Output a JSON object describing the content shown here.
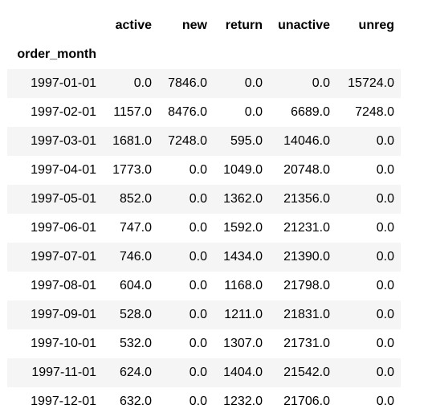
{
  "table": {
    "columns": [
      "active",
      "new",
      "return",
      "unactive",
      "unreg"
    ],
    "index_name": "order_month",
    "rows": [
      {
        "index": "1997-01-01",
        "values": [
          "0.0",
          "7846.0",
          "0.0",
          "0.0",
          "15724.0"
        ]
      },
      {
        "index": "1997-02-01",
        "values": [
          "1157.0",
          "8476.0",
          "0.0",
          "6689.0",
          "7248.0"
        ]
      },
      {
        "index": "1997-03-01",
        "values": [
          "1681.0",
          "7248.0",
          "595.0",
          "14046.0",
          "0.0"
        ]
      },
      {
        "index": "1997-04-01",
        "values": [
          "1773.0",
          "0.0",
          "1049.0",
          "20748.0",
          "0.0"
        ]
      },
      {
        "index": "1997-05-01",
        "values": [
          "852.0",
          "0.0",
          "1362.0",
          "21356.0",
          "0.0"
        ]
      },
      {
        "index": "1997-06-01",
        "values": [
          "747.0",
          "0.0",
          "1592.0",
          "21231.0",
          "0.0"
        ]
      },
      {
        "index": "1997-07-01",
        "values": [
          "746.0",
          "0.0",
          "1434.0",
          "21390.0",
          "0.0"
        ]
      },
      {
        "index": "1997-08-01",
        "values": [
          "604.0",
          "0.0",
          "1168.0",
          "21798.0",
          "0.0"
        ]
      },
      {
        "index": "1997-09-01",
        "values": [
          "528.0",
          "0.0",
          "1211.0",
          "21831.0",
          "0.0"
        ]
      },
      {
        "index": "1997-10-01",
        "values": [
          "532.0",
          "0.0",
          "1307.0",
          "21731.0",
          "0.0"
        ]
      },
      {
        "index": "1997-11-01",
        "values": [
          "624.0",
          "0.0",
          "1404.0",
          "21542.0",
          "0.0"
        ]
      },
      {
        "index": "1997-12-01",
        "values": [
          "632.0",
          "0.0",
          "1232.0",
          "21706.0",
          "0.0"
        ]
      }
    ]
  }
}
